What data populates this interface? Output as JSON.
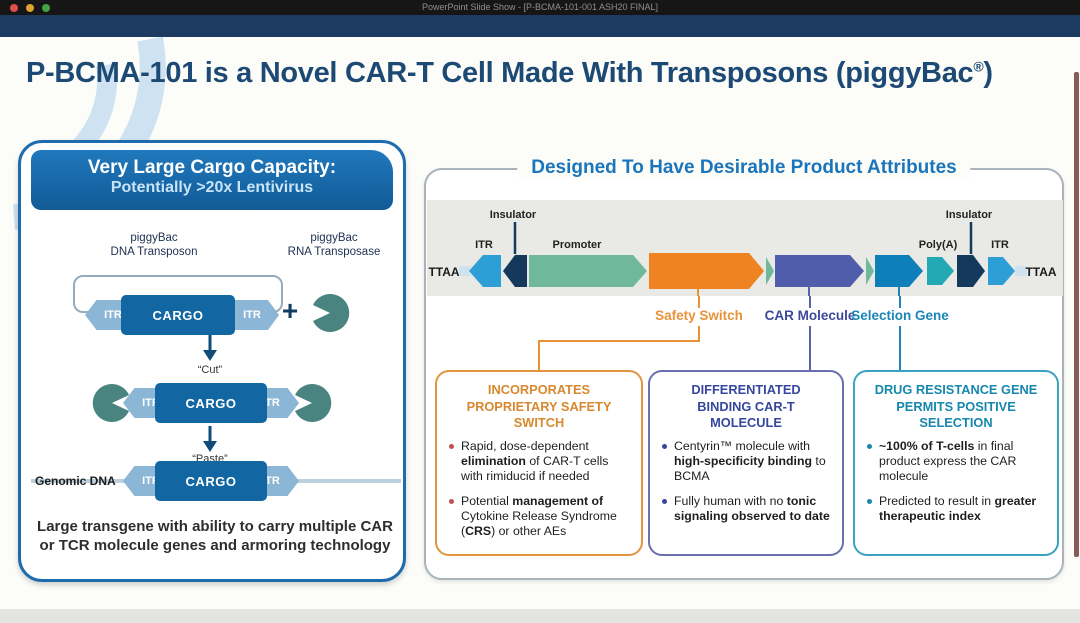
{
  "window": {
    "title": "PowerPoint Slide Show - [P-BCMA-101-001 ASH20 FINAL]"
  },
  "slide": {
    "title_main": "P-BCMA-101 is a Novel CAR-T Cell Made With Transposons (piggyBac",
    "title_sup": "®",
    "title_end": ")"
  },
  "left_panel": {
    "header_line1": "Very Large Cargo Capacity:",
    "header_line2": "Potentially >20x Lentivirus",
    "dna_label_line1": "piggyBac",
    "dna_label_line2": "DNA Transposon",
    "rna_label_line1": "piggyBac",
    "rna_label_line2": "RNA Transposase",
    "itr": "ITR",
    "cargo": "CARGO",
    "plus": "+",
    "cut": "“Cut”",
    "paste": "“Paste”",
    "genomic_dna": "Genomic DNA",
    "caption": "Large transgene with ability to carry multiple CAR or TCR molecule genes and armoring technology"
  },
  "right_panel": {
    "title": "Designed To Have Desirable Product Attributes",
    "construct": {
      "ttaa": "TTAA",
      "itr": "ITR",
      "insulator": "Insulator",
      "promoter": "Promoter",
      "polya": "Poly(A)"
    },
    "feature_labels": {
      "safety": "Safety Switch",
      "car": "CAR Molecule",
      "selection": "Selection Gene"
    },
    "boxes": [
      {
        "header": "INCORPORATES PROPRIETARY SAFETY SWITCH",
        "bullets": [
          [
            {
              "t": "Rapid, dose-dependent "
            },
            {
              "t": "elimination",
              "b": true
            },
            {
              "t": " of CAR-T cells with rimiducid if needed"
            }
          ],
          [
            {
              "t": "Potential "
            },
            {
              "t": "management of",
              "b": true
            },
            {
              "t": " Cytokine Release Syndrome ("
            },
            {
              "t": "CRS",
              "b": true
            },
            {
              "t": ") or other AEs"
            }
          ]
        ]
      },
      {
        "header": "DIFFERENTIATED BINDING CAR-T MOLECULE",
        "bullets": [
          [
            {
              "t": "Centyrin™ molecule with "
            },
            {
              "t": "high-specificity binding",
              "b": true
            },
            {
              "t": " to BCMA"
            }
          ],
          [
            {
              "t": "Fully human with no "
            },
            {
              "t": "tonic signaling observed to date",
              "b": true
            }
          ]
        ]
      },
      {
        "header": "DRUG RESISTANCE GENE PERMITS POSITIVE SELECTION",
        "bullets": [
          [
            {
              "t": "~100% of T-cells",
              "b": true
            },
            {
              "t": " in final product express the CAR molecule"
            }
          ],
          [
            {
              "t": "Predicted to result in "
            },
            {
              "t": "greater therapeutic index",
              "b": true
            }
          ]
        ]
      }
    ]
  },
  "colors": {
    "header_blue": "#1b75bb",
    "navy": "#14395d",
    "orange": "#ef8322",
    "indigo": "#4f5dab",
    "blue": "#0e7fb8",
    "teal": "#23a9b4",
    "green": "#6fb89b",
    "light_blue": "#2e9fd6",
    "steel_blue": "#8bb6d5",
    "pacman_teal": "#4a8480",
    "cargo_blue": "#1266a2"
  }
}
